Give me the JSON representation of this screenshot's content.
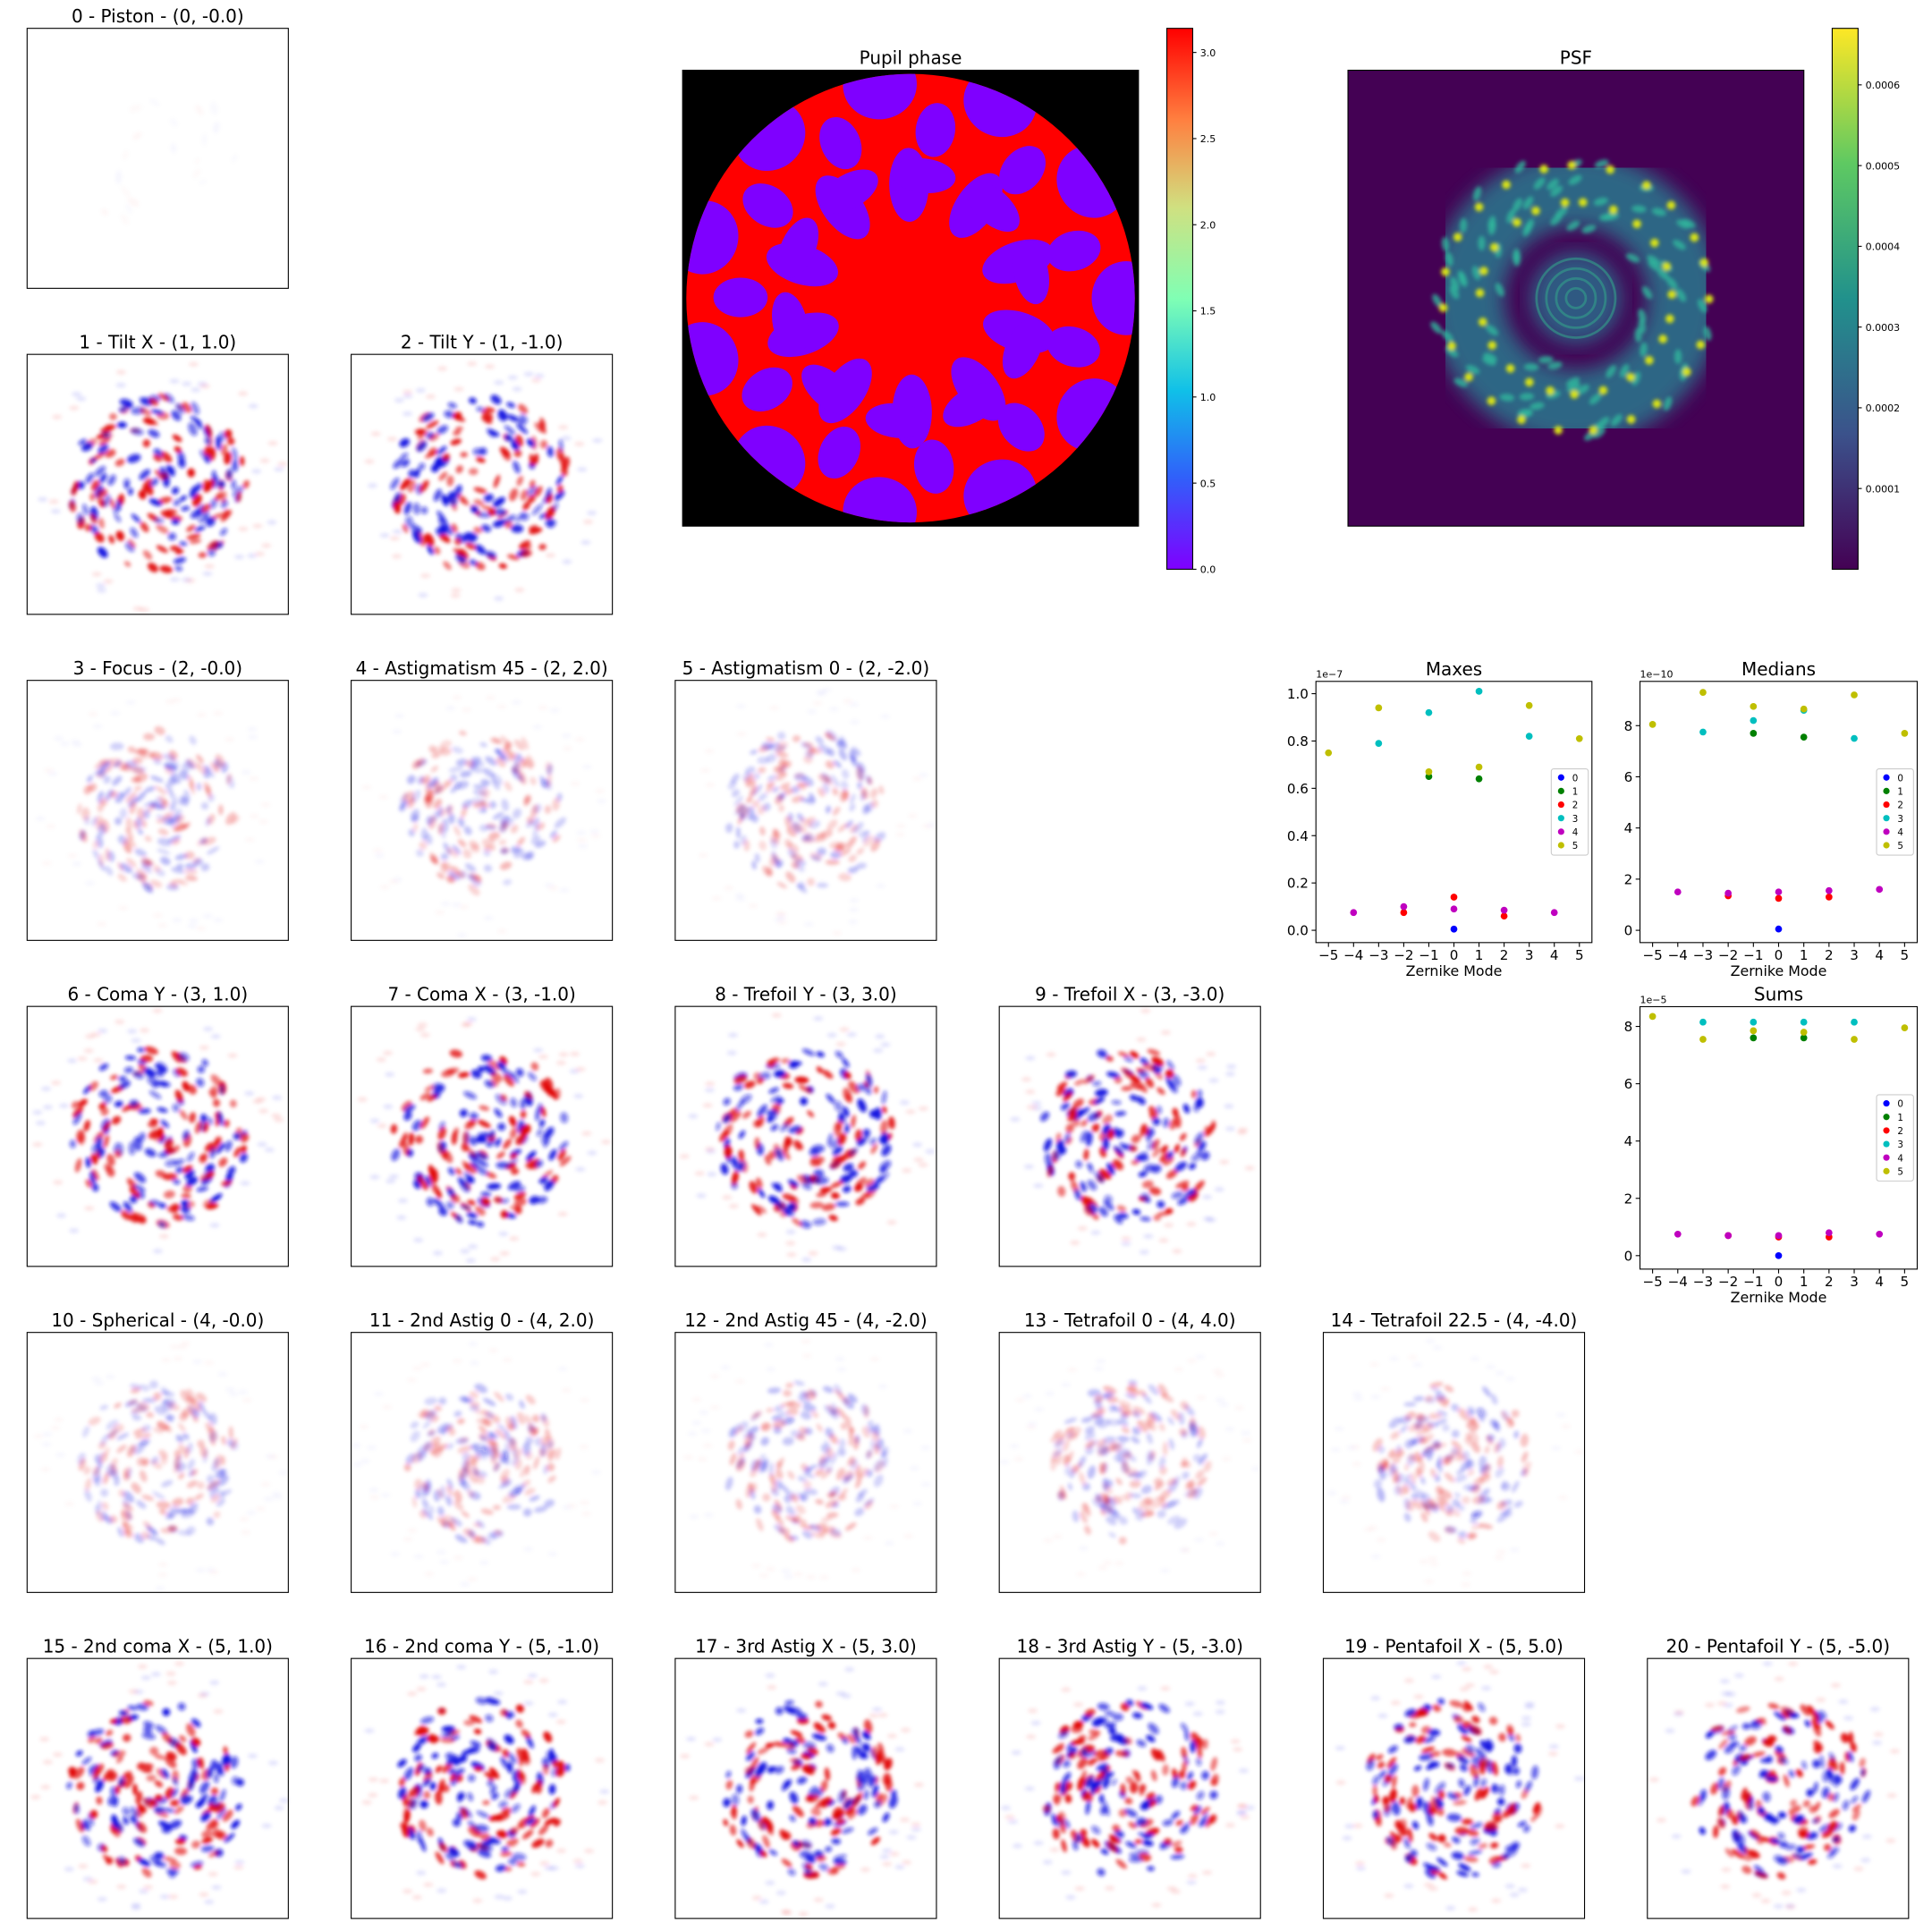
{
  "chart_data": [
    {
      "type": "image",
      "title": "0 - Piston - (0, -0.0)"
    },
    {
      "type": "image",
      "title": "1 - Tilt X - (1, 1.0)"
    },
    {
      "type": "image",
      "title": "2 - Tilt Y - (1, -1.0)"
    },
    {
      "type": "image",
      "title": "3 - Focus - (2, -0.0)"
    },
    {
      "type": "image",
      "title": "4 - Astigmatism 45 - (2, 2.0)"
    },
    {
      "type": "image",
      "title": "5 - Astigmatism 0 - (2, -2.0)"
    },
    {
      "type": "image",
      "title": "6 - Coma Y - (3, 1.0)"
    },
    {
      "type": "image",
      "title": "7 - Coma X - (3, -1.0)"
    },
    {
      "type": "image",
      "title": "8 - Trefoil Y - (3, 3.0)"
    },
    {
      "type": "image",
      "title": "9 - Trefoil X - (3, -3.0)"
    },
    {
      "type": "image",
      "title": "10 - Spherical - (4, -0.0)"
    },
    {
      "type": "image",
      "title": "11 - 2nd Astig 0 - (4, 2.0)"
    },
    {
      "type": "image",
      "title": "12 - 2nd Astig 45 - (4, -2.0)"
    },
    {
      "type": "image",
      "title": "13 - Tetrafoil 0 - (4, 4.0)"
    },
    {
      "type": "image",
      "title": "14 - Tetrafoil 22.5 - (4, -4.0)"
    },
    {
      "type": "image",
      "title": "15 - 2nd coma X - (5, 1.0)"
    },
    {
      "type": "image",
      "title": "16 - 2nd coma Y - (5, -1.0)"
    },
    {
      "type": "image",
      "title": "17 - 3rd Astig X - (5, 3.0)"
    },
    {
      "type": "image",
      "title": "18 - 3rd Astig Y - (5, -3.0)"
    },
    {
      "type": "image",
      "title": "19 - Pentafoil X - (5, 5.0)"
    },
    {
      "type": "image",
      "title": "20 - Pentafoil Y - (5, -5.0)"
    },
    {
      "type": "pupil",
      "title": "Pupil phase",
      "colorbar": {
        "lim": [
          0,
          3.14
        ],
        "ticks": [
          {
            "value": 0,
            "label": "0.0"
          },
          0.5,
          {
            "value": 1,
            "label": "1.0"
          },
          1.5,
          {
            "value": 2,
            "label": "2.0"
          },
          2.5,
          {
            "value": 3,
            "label": "3.0"
          }
        ]
      }
    },
    {
      "type": "psf",
      "title": "PSF",
      "colorbar": {
        "lim": [
          0,
          0.00067
        ],
        "ticks": [
          0.0001,
          0.0002,
          0.0003,
          0.0004,
          0.0005,
          0.0006
        ]
      }
    },
    {
      "type": "scatter",
      "title": "Maxes",
      "xlabel": "Zernike Mode",
      "offset": "1e−7",
      "legend": "center right",
      "xlim": [
        -5.5,
        5.5
      ],
      "ylim": [
        -0.052,
        1.052
      ],
      "xticks": [
        {
          "value": -5,
          "label": "−5"
        },
        {
          "value": -4,
          "label": "−4"
        },
        {
          "value": -3,
          "label": "−3"
        },
        {
          "value": -2,
          "label": "−2"
        },
        {
          "value": -1,
          "label": "−1"
        },
        0,
        1,
        2,
        3,
        4,
        5
      ],
      "yticks": [
        {
          "value": 0,
          "label": "0.0"
        },
        0.2,
        0.4,
        0.6,
        0.8,
        {
          "value": 1,
          "label": "1.0"
        }
      ],
      "series": [
        {
          "name": "0",
          "color": "#0000ff",
          "x": [
            0
          ],
          "values": [
            0.005
          ]
        },
        {
          "name": "1",
          "color": "#008000",
          "x": [
            1,
            -1
          ],
          "values": [
            0.64,
            0.65
          ]
        },
        {
          "name": "2",
          "color": "#ff0000",
          "x": [
            0,
            2,
            -2
          ],
          "values": [
            0.14,
            0.06,
            0.075
          ]
        },
        {
          "name": "3",
          "color": "#00bfbf",
          "x": [
            1,
            -1,
            3,
            -3
          ],
          "values": [
            1.01,
            0.92,
            0.82,
            0.79
          ]
        },
        {
          "name": "4",
          "color": "#bf00bf",
          "x": [
            0,
            2,
            -2,
            4,
            -4
          ],
          "values": [
            0.09,
            0.085,
            0.1,
            0.075,
            0.075
          ]
        },
        {
          "name": "5",
          "color": "#bfbf00",
          "x": [
            1,
            -1,
            3,
            -3,
            5,
            -5
          ],
          "values": [
            0.69,
            0.67,
            0.95,
            0.94,
            0.81,
            0.75
          ]
        }
      ]
    },
    {
      "type": "scatter",
      "title": "Medians",
      "xlabel": "Zernike Mode",
      "offset": "1e−10",
      "legend": "center right",
      "xlim": [
        -5.5,
        5.5
      ],
      "ylim": [
        -0.48,
        9.73
      ],
      "xticks": [
        {
          "value": -5,
          "label": "−5"
        },
        {
          "value": -4,
          "label": "−4"
        },
        {
          "value": -3,
          "label": "−3"
        },
        {
          "value": -2,
          "label": "−2"
        },
        {
          "value": -1,
          "label": "−1"
        },
        0,
        1,
        2,
        3,
        4,
        5
      ],
      "yticks": [
        0,
        2,
        4,
        6,
        8
      ],
      "series": [
        {
          "name": "0",
          "color": "#0000ff",
          "x": [
            0
          ],
          "values": [
            0.05
          ]
        },
        {
          "name": "1",
          "color": "#008000",
          "x": [
            1,
            -1
          ],
          "values": [
            7.55,
            7.7
          ]
        },
        {
          "name": "2",
          "color": "#ff0000",
          "x": [
            0,
            2,
            -2
          ],
          "values": [
            1.25,
            1.3,
            1.35
          ]
        },
        {
          "name": "3",
          "color": "#00bfbf",
          "x": [
            1,
            -1,
            3,
            -3
          ],
          "values": [
            8.6,
            8.2,
            7.5,
            7.75
          ]
        },
        {
          "name": "4",
          "color": "#bf00bf",
          "x": [
            0,
            2,
            -2,
            4,
            -4
          ],
          "values": [
            1.5,
            1.55,
            1.45,
            1.6,
            1.5
          ]
        },
        {
          "name": "5",
          "color": "#bfbf00",
          "x": [
            1,
            -1,
            3,
            -3,
            5,
            -5
          ],
          "values": [
            8.65,
            8.75,
            9.2,
            9.3,
            7.7,
            8.05
          ]
        }
      ]
    },
    {
      "type": "scatter",
      "title": "Sums",
      "xlabel": "Zernike Mode",
      "offset": "1e−5",
      "legend": "center right",
      "xlim": [
        -5.5,
        5.5
      ],
      "ylim": [
        -0.47,
        8.69
      ],
      "xticks": [
        {
          "value": -5,
          "label": "−5"
        },
        {
          "value": -4,
          "label": "−4"
        },
        {
          "value": -3,
          "label": "−3"
        },
        {
          "value": -2,
          "label": "−2"
        },
        {
          "value": -1,
          "label": "−1"
        },
        0,
        1,
        2,
        3,
        4,
        5
      ],
      "yticks": [
        0,
        2,
        4,
        6,
        8
      ],
      "series": [
        {
          "name": "0",
          "color": "#0000ff",
          "x": [
            0
          ],
          "values": [
            0.0
          ]
        },
        {
          "name": "1",
          "color": "#008000",
          "x": [
            1,
            -1
          ],
          "values": [
            7.6,
            7.6
          ]
        },
        {
          "name": "2",
          "color": "#ff0000",
          "x": [
            0,
            2,
            -2
          ],
          "values": [
            0.65,
            0.65,
            0.7
          ]
        },
        {
          "name": "3",
          "color": "#00bfbf",
          "x": [
            1,
            -1,
            3,
            -3
          ],
          "values": [
            8.15,
            8.15,
            8.15,
            8.15
          ]
        },
        {
          "name": "4",
          "color": "#bf00bf",
          "x": [
            0,
            2,
            -2,
            4,
            -4
          ],
          "values": [
            0.7,
            0.8,
            0.7,
            0.75,
            0.75
          ]
        },
        {
          "name": "5",
          "color": "#bfbf00",
          "x": [
            1,
            -1,
            3,
            -3,
            5,
            -5
          ],
          "values": [
            7.8,
            7.85,
            7.55,
            7.55,
            7.95,
            8.35
          ]
        }
      ]
    }
  ]
}
